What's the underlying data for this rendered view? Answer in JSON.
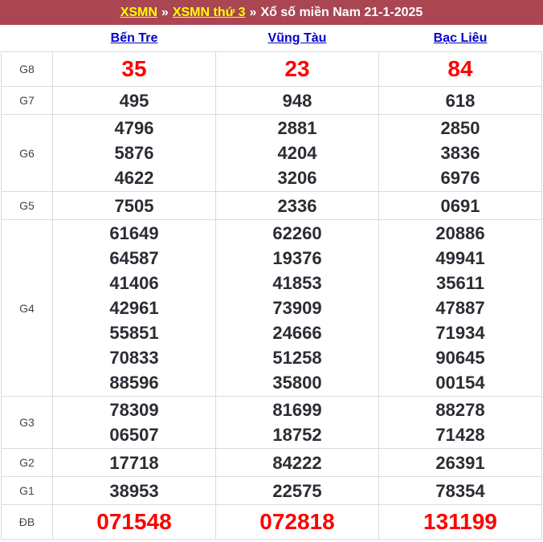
{
  "breadcrumb": {
    "link1": "XSMN",
    "sep": "»",
    "link2": "XSMN thứ 3",
    "title": "Xổ số miền Nam 21-1-2025"
  },
  "columns": [
    "Bến Tre",
    "Vũng Tàu",
    "Bạc Liêu"
  ],
  "rows": [
    {
      "label": "G8",
      "highlight": true,
      "values": [
        [
          "35"
        ],
        [
          "23"
        ],
        [
          "84"
        ]
      ]
    },
    {
      "label": "G7",
      "highlight": false,
      "values": [
        [
          "495"
        ],
        [
          "948"
        ],
        [
          "618"
        ]
      ]
    },
    {
      "label": "G6",
      "highlight": false,
      "values": [
        [
          "4796",
          "5876",
          "4622"
        ],
        [
          "2881",
          "4204",
          "3206"
        ],
        [
          "2850",
          "3836",
          "6976"
        ]
      ]
    },
    {
      "label": "G5",
      "highlight": false,
      "values": [
        [
          "7505"
        ],
        [
          "2336"
        ],
        [
          "0691"
        ]
      ]
    },
    {
      "label": "G4",
      "highlight": false,
      "values": [
        [
          "61649",
          "64587",
          "41406",
          "42961",
          "55851",
          "70833",
          "88596"
        ],
        [
          "62260",
          "19376",
          "41853",
          "73909",
          "24666",
          "51258",
          "35800"
        ],
        [
          "20886",
          "49941",
          "35611",
          "47887",
          "71934",
          "90645",
          "00154"
        ]
      ]
    },
    {
      "label": "G3",
      "highlight": false,
      "values": [
        [
          "78309",
          "06507"
        ],
        [
          "81699",
          "18752"
        ],
        [
          "88278",
          "71428"
        ]
      ]
    },
    {
      "label": "G2",
      "highlight": false,
      "values": [
        [
          "17718"
        ],
        [
          "84222"
        ],
        [
          "26391"
        ]
      ]
    },
    {
      "label": "G1",
      "highlight": false,
      "values": [
        [
          "38953"
        ],
        [
          "22575"
        ],
        [
          "78354"
        ]
      ]
    },
    {
      "label": "ĐB",
      "highlight": true,
      "values": [
        [
          "071548"
        ],
        [
          "072818"
        ],
        [
          "131199"
        ]
      ]
    }
  ],
  "colors": {
    "topbar_bg": "#a94652",
    "link_yellow": "#ffff00",
    "province_blue": "#0000cc",
    "number_dark": "#2d2c35",
    "highlight_red": "#ff0000",
    "border": "#dbdbdb"
  }
}
